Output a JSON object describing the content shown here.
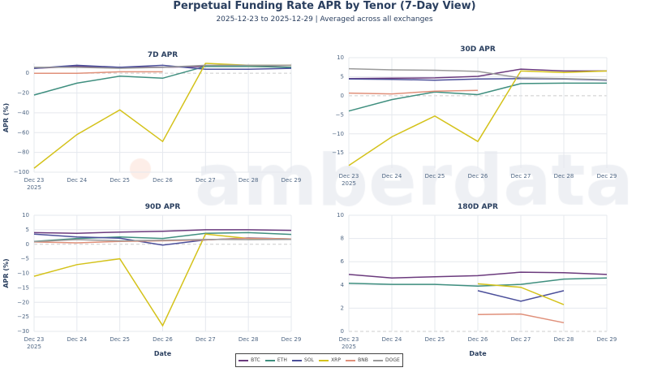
{
  "title": "Perpetual Funding Rate APR by Tenor (7-Day View)",
  "subtitle": "2025-12-23 to 2025-12-29 | Averaged across all exchanges",
  "watermark": "amberdata",
  "legend": [
    {
      "name": "BTC",
      "color": "#6b3a7d"
    },
    {
      "name": "ETH",
      "color": "#3f8f7f"
    },
    {
      "name": "SOL",
      "color": "#4b4f9a"
    },
    {
      "name": "XRP",
      "color": "#d4c21a"
    },
    {
      "name": "BNB",
      "color": "#e0907a"
    },
    {
      "name": "DOGE",
      "color": "#9a9a9a"
    }
  ],
  "chart_data": [
    {
      "type": "line",
      "title": "7D APR",
      "ylabel": "APR (%)",
      "xlabel": "",
      "categories": [
        "Dec 23\n2025",
        "Dec 24",
        "Dec 25",
        "Dec 26",
        "Dec 27",
        "Dec 28",
        "Dec 29"
      ],
      "ylim": [
        -100,
        10
      ],
      "yticks": [
        0,
        -20,
        -40,
        -60,
        -80,
        -100
      ],
      "series": [
        {
          "name": "BTC",
          "values": [
            5,
            7,
            6,
            6,
            7,
            7,
            8
          ]
        },
        {
          "name": "ETH",
          "values": [
            -22,
            -10,
            -3,
            -5,
            7,
            7,
            6
          ]
        },
        {
          "name": "SOL",
          "values": [
            5,
            8,
            6,
            8,
            4,
            4,
            5
          ]
        },
        {
          "name": "XRP",
          "values": [
            -96,
            -62,
            -37,
            -69,
            10,
            8,
            8
          ]
        },
        {
          "name": "BNB",
          "values": [
            0,
            0,
            1.5,
            1.5,
            null,
            null,
            null
          ]
        },
        {
          "name": "DOGE",
          "values": [
            6,
            6,
            5,
            6,
            8,
            8,
            8
          ]
        }
      ]
    },
    {
      "type": "line",
      "title": "30D APR",
      "ylabel": "",
      "xlabel": "",
      "categories": [
        "Dec 23\n2025",
        "Dec 24",
        "Dec 25",
        "Dec 26",
        "Dec 27",
        "Dec 28",
        "Dec 29"
      ],
      "ylim": [
        -19,
        10
      ],
      "yticks": [
        10,
        5,
        0,
        -5,
        -10,
        -15
      ],
      "series": [
        {
          "name": "BTC",
          "values": [
            4.5,
            4.6,
            4.7,
            5.1,
            7,
            6.5,
            6.5
          ]
        },
        {
          "name": "ETH",
          "values": [
            -4,
            -1,
            1,
            0.3,
            3.2,
            3.3,
            3.3
          ]
        },
        {
          "name": "SOL",
          "values": [
            4.4,
            4.3,
            4.1,
            4.4,
            4.5,
            4.4,
            4.1
          ]
        },
        {
          "name": "XRP",
          "values": [
            -18.3,
            -10.8,
            -5.3,
            -12,
            6.5,
            6.1,
            6.5
          ]
        },
        {
          "name": "BNB",
          "values": [
            0.7,
            0.5,
            1.2,
            1.4,
            null,
            null,
            null
          ]
        },
        {
          "name": "DOGE",
          "values": [
            7.1,
            6.8,
            6.7,
            6.4,
            4.7,
            4.5,
            4.2
          ]
        }
      ]
    },
    {
      "type": "line",
      "title": "90D APR",
      "ylabel": "APR (%)",
      "xlabel": "Date",
      "categories": [
        "Dec 23\n2025",
        "Dec 24",
        "Dec 25",
        "Dec 26",
        "Dec 27",
        "Dec 28",
        "Dec 29"
      ],
      "ylim": [
        -30,
        10
      ],
      "yticks": [
        10,
        5,
        0,
        -5,
        -10,
        -15,
        -20,
        -25,
        -30
      ],
      "series": [
        {
          "name": "BTC",
          "values": [
            4,
            3.8,
            4.2,
            4.5,
            5,
            5,
            4.8
          ]
        },
        {
          "name": "ETH",
          "values": [
            1,
            2,
            2.5,
            2,
            3.8,
            4,
            3.4
          ]
        },
        {
          "name": "SOL",
          "values": [
            3.5,
            2.5,
            2.1,
            -0.3,
            1.5,
            2.2,
            1.8
          ]
        },
        {
          "name": "XRP",
          "values": [
            -11,
            -7,
            -5,
            -28,
            3.5,
            2,
            1.8
          ]
        },
        {
          "name": "BNB",
          "values": [
            0.8,
            0.5,
            1,
            1.2,
            1.5,
            2.1,
            1.8
          ]
        },
        {
          "name": "DOGE",
          "values": [
            0.9,
            1.6,
            1.2,
            1.4,
            1.7,
            1.6,
            1.7
          ]
        }
      ]
    },
    {
      "type": "line",
      "title": "180D APR",
      "ylabel": "",
      "xlabel": "Date",
      "categories": [
        "Dec 23\n2025",
        "Dec 24",
        "Dec 25",
        "Dec 26",
        "Dec 27",
        "Dec 28",
        "Dec 29"
      ],
      "ylim": [
        0,
        10
      ],
      "yticks": [
        10,
        8,
        6,
        4,
        2,
        0
      ],
      "series": [
        {
          "name": "BTC",
          "values": [
            4.9,
            4.6,
            4.7,
            4.8,
            5.1,
            5.05,
            4.9
          ]
        },
        {
          "name": "ETH",
          "values": [
            4.15,
            4.05,
            4.05,
            3.9,
            4.05,
            4.5,
            4.6
          ]
        },
        {
          "name": "SOL",
          "values": [
            null,
            null,
            null,
            3.5,
            2.6,
            3.5,
            null
          ]
        },
        {
          "name": "XRP",
          "values": [
            null,
            null,
            null,
            4.1,
            3.8,
            2.3,
            null
          ]
        },
        {
          "name": "BNB",
          "values": [
            null,
            null,
            null,
            1.45,
            1.5,
            0.75,
            null
          ]
        },
        {
          "name": "DOGE",
          "values": [
            null,
            null,
            null,
            null,
            null,
            null,
            null
          ]
        }
      ]
    }
  ]
}
